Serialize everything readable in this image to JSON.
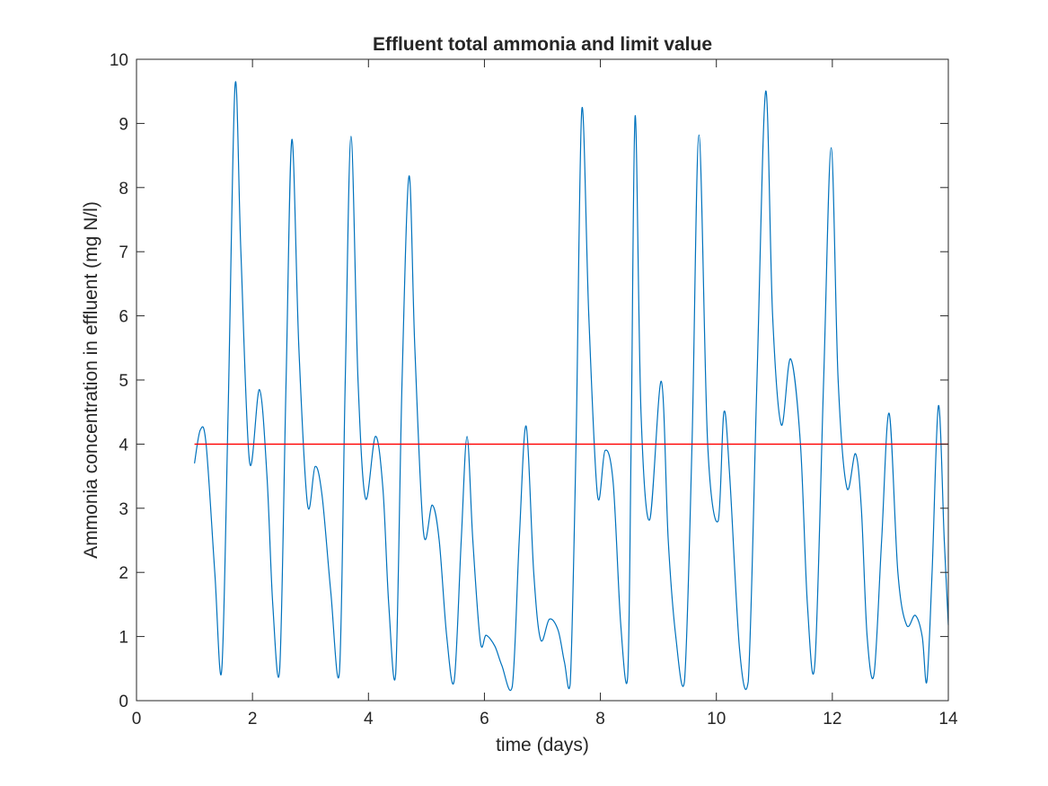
{
  "chart_data": {
    "type": "line",
    "title": "Effluent total ammonia and limit value",
    "xlabel": "time (days)",
    "ylabel": "Ammonia concentration in effluent (mg N/l)",
    "xlim": [
      0,
      14
    ],
    "ylim": [
      0,
      10
    ],
    "x_ticks": [
      "0",
      "2",
      "4",
      "6",
      "8",
      "10",
      "12",
      "14"
    ],
    "y_ticks": [
      "0",
      "1",
      "2",
      "3",
      "4",
      "5",
      "6",
      "7",
      "8",
      "9",
      "10"
    ],
    "grid": false,
    "box": true,
    "series": [
      {
        "color": "#0072BD",
        "x": [
          1.0,
          1.1,
          1.2,
          1.35,
          1.47,
          1.58,
          1.7,
          1.8,
          1.95,
          2.12,
          2.25,
          2.35,
          2.47,
          2.58,
          2.68,
          2.8,
          2.95,
          3.08,
          3.2,
          3.35,
          3.5,
          3.6,
          3.7,
          3.82,
          3.95,
          4.12,
          4.25,
          4.35,
          4.47,
          4.58,
          4.7,
          4.8,
          4.95,
          5.1,
          5.22,
          5.35,
          5.48,
          5.6,
          5.7,
          5.8,
          5.93,
          6.03,
          6.18,
          6.3,
          6.48,
          6.6,
          6.72,
          6.85,
          6.97,
          7.12,
          7.27,
          7.38,
          7.48,
          7.58,
          7.68,
          7.8,
          7.95,
          8.08,
          8.22,
          8.35,
          8.47,
          8.53,
          8.6,
          8.7,
          8.85,
          9.05,
          9.17,
          9.3,
          9.45,
          9.58,
          9.7,
          9.85,
          10.03,
          10.13,
          10.23,
          10.4,
          10.55,
          10.7,
          10.85,
          10.97,
          11.12,
          11.28,
          11.45,
          11.57,
          11.7,
          11.85,
          11.98,
          12.1,
          12.25,
          12.4,
          12.5,
          12.6,
          12.72,
          12.85,
          12.98,
          13.13,
          13.28,
          13.43,
          13.55,
          13.63,
          13.72,
          13.83,
          13.93,
          14.0
        ],
        "y": [
          3.7,
          4.22,
          4.0,
          2.0,
          0.48,
          4.5,
          9.6,
          7.0,
          3.72,
          4.85,
          3.5,
          1.5,
          0.5,
          5.0,
          8.75,
          5.5,
          3.05,
          3.65,
          3.2,
          1.7,
          0.45,
          5.0,
          8.8,
          5.0,
          3.15,
          4.12,
          3.3,
          1.5,
          0.42,
          5.0,
          8.18,
          5.5,
          2.62,
          3.05,
          2.5,
          1.0,
          0.32,
          2.5,
          4.12,
          2.5,
          0.92,
          1.02,
          0.85,
          0.55,
          0.22,
          2.5,
          4.28,
          2.0,
          0.95,
          1.27,
          1.1,
          0.6,
          0.27,
          4.0,
          9.22,
          6.0,
          3.2,
          3.9,
          3.4,
          1.2,
          0.37,
          4.0,
          9.12,
          4.5,
          2.82,
          4.98,
          2.5,
          1.0,
          0.3,
          4.0,
          8.82,
          4.0,
          2.8,
          4.5,
          3.5,
          0.8,
          0.3,
          5.0,
          9.5,
          6.0,
          4.3,
          5.33,
          4.0,
          1.5,
          0.6,
          5.0,
          8.62,
          5.0,
          3.32,
          3.85,
          3.0,
          1.0,
          0.42,
          2.5,
          4.48,
          2.0,
          1.18,
          1.33,
          1.0,
          0.3,
          2.0,
          4.6,
          2.5,
          1.18
        ]
      },
      {
        "color": "#FF0000",
        "x": [
          1.0,
          14.0
        ],
        "y": [
          4.0,
          4.0
        ]
      }
    ]
  }
}
